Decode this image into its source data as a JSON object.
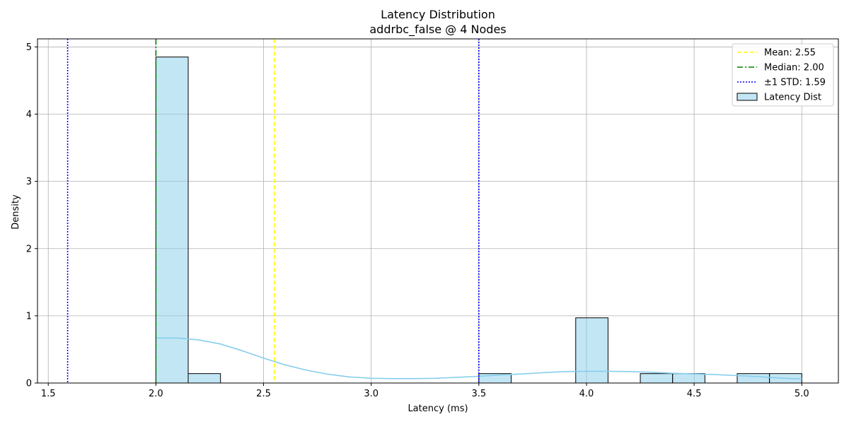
{
  "chart_data": {
    "type": "histogram",
    "title": "Latency Distribution",
    "subtitle": "addrbc_false @ 4 Nodes",
    "xlabel": "Latency (ms)",
    "ylabel": "Density",
    "xlim": [
      1.45,
      5.17
    ],
    "ylim": [
      0,
      5.12
    ],
    "xticks": [
      1.5,
      2.0,
      2.5,
      3.0,
      3.5,
      4.0,
      4.5,
      5.0
    ],
    "xtick_labels": [
      "1.5",
      "2.0",
      "2.5",
      "3.0",
      "3.5",
      "4.0",
      "4.5",
      "5.0"
    ],
    "yticks": [
      0,
      1,
      2,
      3,
      4,
      5
    ],
    "ytick_labels": [
      "0",
      "1",
      "2",
      "3",
      "4",
      "5"
    ],
    "grid": true,
    "legend_position": "top-right",
    "histogram": {
      "name": "Latency Dist",
      "color": "#87ceeb",
      "bins": [
        {
          "x0": 2.0,
          "x1": 2.15,
          "density": 4.85
        },
        {
          "x0": 2.15,
          "x1": 2.3,
          "density": 0.14
        },
        {
          "x0": 3.5,
          "x1": 3.65,
          "density": 0.14
        },
        {
          "x0": 3.95,
          "x1": 4.1,
          "density": 0.97
        },
        {
          "x0": 4.25,
          "x1": 4.4,
          "density": 0.14
        },
        {
          "x0": 4.4,
          "x1": 4.55,
          "density": 0.14
        },
        {
          "x0": 4.7,
          "x1": 4.85,
          "density": 0.14
        },
        {
          "x0": 4.85,
          "x1": 5.0,
          "density": 0.14
        }
      ]
    },
    "kde": {
      "color": "#87ceeb",
      "points": [
        [
          2.0,
          0.67
        ],
        [
          2.1,
          0.67
        ],
        [
          2.2,
          0.64
        ],
        [
          2.3,
          0.58
        ],
        [
          2.4,
          0.48
        ],
        [
          2.5,
          0.37
        ],
        [
          2.6,
          0.27
        ],
        [
          2.7,
          0.19
        ],
        [
          2.8,
          0.13
        ],
        [
          2.9,
          0.09
        ],
        [
          3.0,
          0.07
        ],
        [
          3.1,
          0.065
        ],
        [
          3.2,
          0.065
        ],
        [
          3.3,
          0.07
        ],
        [
          3.4,
          0.085
        ],
        [
          3.5,
          0.1
        ],
        [
          3.6,
          0.12
        ],
        [
          3.7,
          0.135
        ],
        [
          3.8,
          0.155
        ],
        [
          3.9,
          0.17
        ],
        [
          4.0,
          0.175
        ],
        [
          4.1,
          0.175
        ],
        [
          4.2,
          0.17
        ],
        [
          4.3,
          0.16
        ],
        [
          4.4,
          0.145
        ],
        [
          4.5,
          0.135
        ],
        [
          4.6,
          0.125
        ],
        [
          4.7,
          0.11
        ],
        [
          4.8,
          0.095
        ],
        [
          4.9,
          0.075
        ],
        [
          5.0,
          0.06
        ]
      ]
    },
    "lines": [
      {
        "name": "Mean: 2.55",
        "x": 2.55,
        "color": "#ffff00",
        "style": "dashed"
      },
      {
        "name": "Median: 2.00",
        "x": 2.0,
        "color": "#008000",
        "style": "dashdot"
      },
      {
        "name": "±1 STD: 1.59",
        "x": 1.59,
        "color": "#0000ff",
        "style": "dotted"
      },
      {
        "name": "",
        "x": 3.5,
        "color": "#0000ff",
        "style": "dotted"
      }
    ]
  }
}
